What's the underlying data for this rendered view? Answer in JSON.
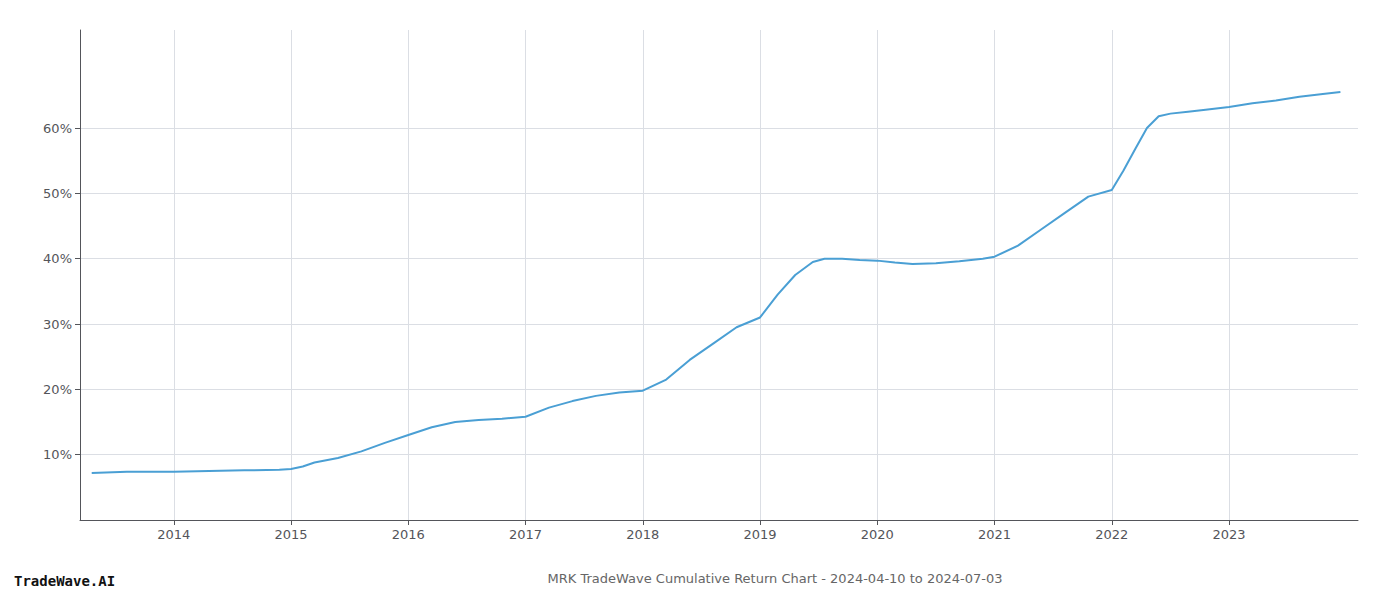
{
  "chart_data": {
    "type": "line",
    "title": "MRK TradeWave Cumulative Return Chart - 2024-04-10 to 2024-07-03",
    "annotations": [
      "TradeWave.AI"
    ],
    "color": "#4a9fd4",
    "x": [
      2013.3,
      2013.6,
      2014.0,
      2014.3,
      2014.6,
      2014.9,
      2015.0,
      2015.1,
      2015.2,
      2015.4,
      2015.6,
      2015.8,
      2016.0,
      2016.2,
      2016.4,
      2016.6,
      2016.8,
      2017.0,
      2017.2,
      2017.4,
      2017.6,
      2017.8,
      2018.0,
      2018.2,
      2018.4,
      2018.6,
      2018.8,
      2019.0,
      2019.15,
      2019.3,
      2019.45,
      2019.55,
      2019.7,
      2019.85,
      2020.0,
      2020.15,
      2020.3,
      2020.5,
      2020.7,
      2020.9,
      2021.0,
      2021.2,
      2021.4,
      2021.6,
      2021.8,
      2022.0,
      2022.1,
      2022.2,
      2022.3,
      2022.4,
      2022.5,
      2022.65,
      2022.8,
      2023.0,
      2023.2,
      2023.4,
      2023.6,
      2023.8,
      2023.95
    ],
    "values": [
      0.072,
      0.074,
      0.074,
      0.075,
      0.076,
      0.077,
      0.078,
      0.082,
      0.088,
      0.095,
      0.105,
      0.118,
      0.13,
      0.142,
      0.15,
      0.153,
      0.155,
      0.158,
      0.172,
      0.182,
      0.19,
      0.195,
      0.198,
      0.215,
      0.245,
      0.27,
      0.295,
      0.31,
      0.345,
      0.375,
      0.395,
      0.4,
      0.4,
      0.398,
      0.397,
      0.394,
      0.392,
      0.393,
      0.396,
      0.4,
      0.403,
      0.42,
      0.445,
      0.47,
      0.495,
      0.505,
      0.535,
      0.568,
      0.6,
      0.618,
      0.622,
      0.625,
      0.628,
      0.632,
      0.638,
      0.642,
      0.648,
      0.652,
      0.655
    ],
    "xlim": [
      2013.2,
      2024.1
    ],
    "xticks": [
      2014,
      2015,
      2016,
      2017,
      2018,
      2019,
      2020,
      2021,
      2022,
      2023
    ],
    "ylim": [
      0.0,
      0.75
    ],
    "yticks": [
      {
        "value": 0.1,
        "label": "10%"
      },
      {
        "value": 0.2,
        "label": "20%"
      },
      {
        "value": 0.3,
        "label": "30%"
      },
      {
        "value": 0.4,
        "label": "40%"
      },
      {
        "value": 0.5,
        "label": "50%"
      },
      {
        "value": 0.6,
        "label": "60%"
      }
    ],
    "grid": true
  }
}
